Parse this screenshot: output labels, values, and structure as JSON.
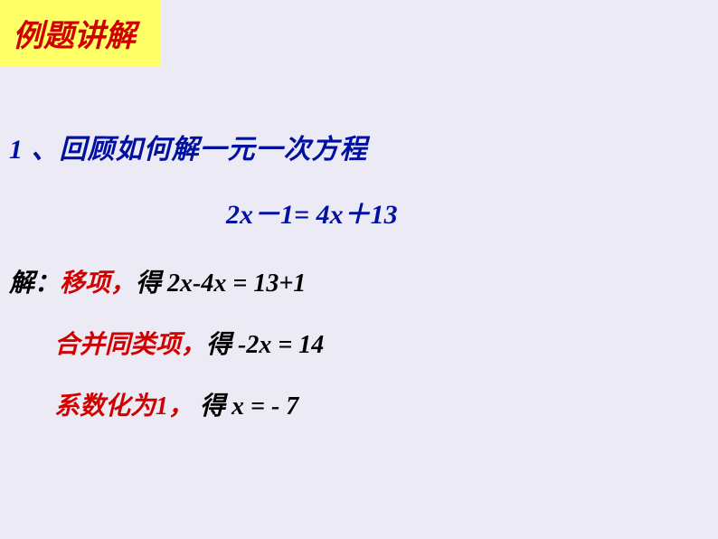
{
  "header": {
    "title": "例题讲解"
  },
  "question": {
    "number": "1",
    "text": "、回顾如何解一元一次方程",
    "equation": "2x－1= 4x＋13"
  },
  "steps": [
    {
      "prefix": "解：",
      "red_label": "移项，",
      "black_label": "得",
      "math": "2x-4x = 13+1",
      "math_spacing": "        "
    },
    {
      "prefix": "",
      "red_label": "合并同类项，",
      "black_label": "得",
      "math": "-2x = 14",
      "math_spacing": "    "
    },
    {
      "prefix": "",
      "red_label": "系数化为1，",
      "black_label": " 得",
      "math": "x = -  7",
      "math_spacing": "       "
    }
  ],
  "styles": {
    "background_color": "#ecebf5",
    "badge_bg": "#ffff66",
    "red_color": "#d00000",
    "blue_color": "#0010a0",
    "black_color": "#000000",
    "title_fontsize": 34,
    "body_fontsize": 28,
    "question_fontsize": 30
  }
}
